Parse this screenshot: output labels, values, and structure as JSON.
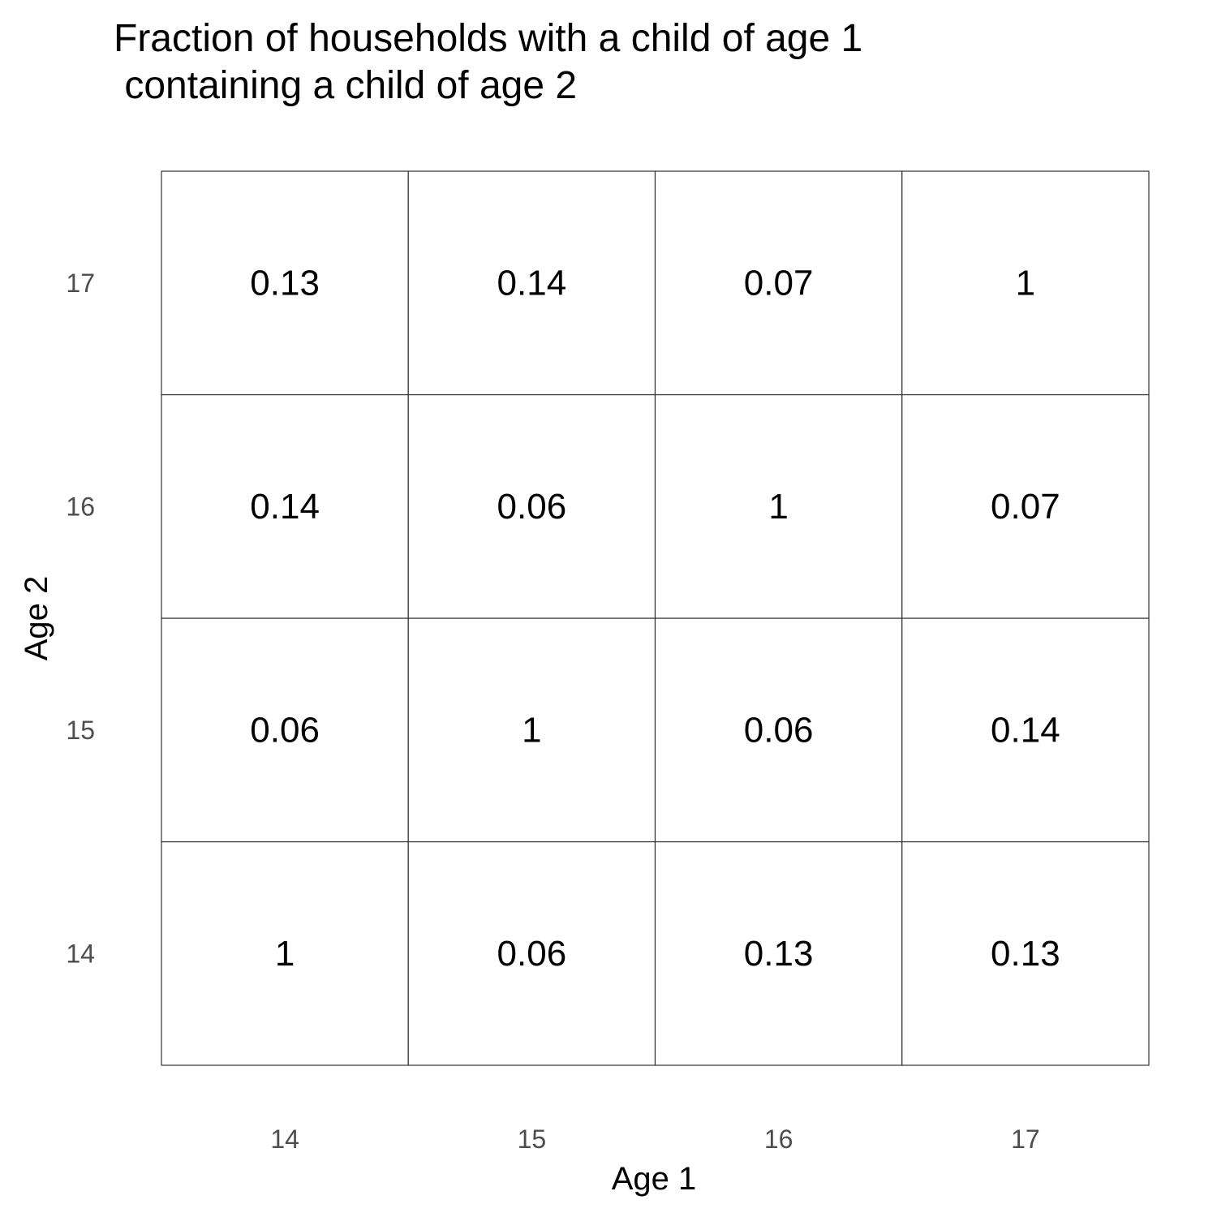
{
  "chart_data": {
    "type": "heatmap",
    "title": [
      "Fraction of households with a child of age 1",
      " containing a child of age 2"
    ],
    "xlabel": "Age 1",
    "ylabel": "Age 2",
    "x_categories": [
      "14",
      "15",
      "16",
      "17"
    ],
    "y_categories": [
      "14",
      "15",
      "16",
      "17"
    ],
    "cells": [
      {
        "x": "14",
        "y": "14",
        "value": "1"
      },
      {
        "x": "15",
        "y": "14",
        "value": "0.06"
      },
      {
        "x": "16",
        "y": "14",
        "value": "0.13"
      },
      {
        "x": "17",
        "y": "14",
        "value": "0.13"
      },
      {
        "x": "14",
        "y": "15",
        "value": "0.06"
      },
      {
        "x": "15",
        "y": "15",
        "value": "1"
      },
      {
        "x": "16",
        "y": "15",
        "value": "0.06"
      },
      {
        "x": "17",
        "y": "15",
        "value": "0.14"
      },
      {
        "x": "14",
        "y": "16",
        "value": "0.14"
      },
      {
        "x": "15",
        "y": "16",
        "value": "0.06"
      },
      {
        "x": "16",
        "y": "16",
        "value": "1"
      },
      {
        "x": "17",
        "y": "16",
        "value": "0.07"
      },
      {
        "x": "14",
        "y": "17",
        "value": "0.13"
      },
      {
        "x": "15",
        "y": "17",
        "value": "0.14"
      },
      {
        "x": "16",
        "y": "17",
        "value": "0.07"
      },
      {
        "x": "17",
        "y": "17",
        "value": "1"
      }
    ],
    "cell_fill": "#ffffff",
    "cell_border": "#333333",
    "legend": "none",
    "grid": false
  }
}
